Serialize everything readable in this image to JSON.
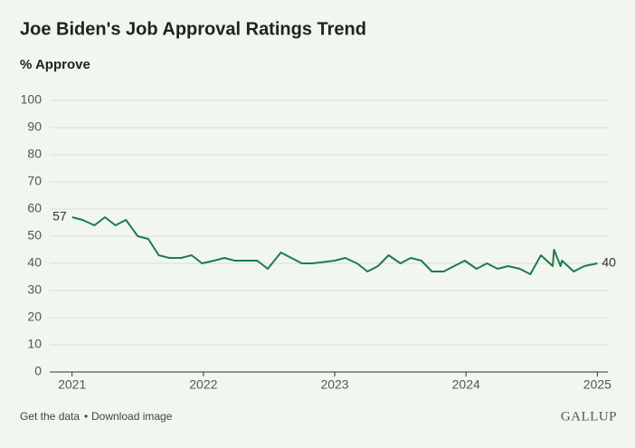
{
  "chart_data": {
    "type": "line",
    "title": "Joe Biden's Job Approval Ratings Trend",
    "subtitle": "% Approve",
    "x": [
      2021.0,
      2021.08,
      2021.17,
      2021.25,
      2021.33,
      2021.41,
      2021.5,
      2021.58,
      2021.66,
      2021.74,
      2021.83,
      2021.91,
      2021.99,
      2022.08,
      2022.16,
      2022.24,
      2022.32,
      2022.41,
      2022.49,
      2022.59,
      2022.67,
      2022.75,
      2022.83,
      2023.0,
      2023.08,
      2023.17,
      2023.25,
      2023.33,
      2023.41,
      2023.5,
      2023.58,
      2023.66,
      2023.74,
      2023.83,
      2023.91,
      2023.99,
      2024.08,
      2024.16,
      2024.24,
      2024.32,
      2024.41,
      2024.49,
      2024.57,
      2024.66,
      2024.67,
      2024.72,
      2024.73,
      2024.82,
      2024.9,
      2025.0
    ],
    "values": [
      57,
      56,
      54,
      57,
      54,
      56,
      50,
      49,
      43,
      42,
      42,
      43,
      40,
      41,
      42,
      41,
      41,
      41,
      38,
      44,
      42,
      40,
      40,
      41,
      42,
      40,
      37,
      39,
      43,
      40,
      42,
      41,
      37,
      37,
      39,
      41,
      38,
      40,
      38,
      39,
      38,
      36,
      43,
      39,
      45,
      39,
      41,
      37,
      39,
      40
    ],
    "color": "#1e7b4b",
    "xlim": [
      2020.83,
      2025.08
    ],
    "xticks": [
      2021,
      2022,
      2023,
      2024,
      2025
    ],
    "ylim": [
      0,
      100
    ],
    "yticks": [
      0,
      10,
      20,
      30,
      40,
      50,
      60,
      70,
      80,
      90,
      100
    ],
    "grid": true
  },
  "footer": {
    "links": [
      "Get the data",
      "Download image"
    ],
    "separator": "•",
    "brand": "GALLUP"
  }
}
